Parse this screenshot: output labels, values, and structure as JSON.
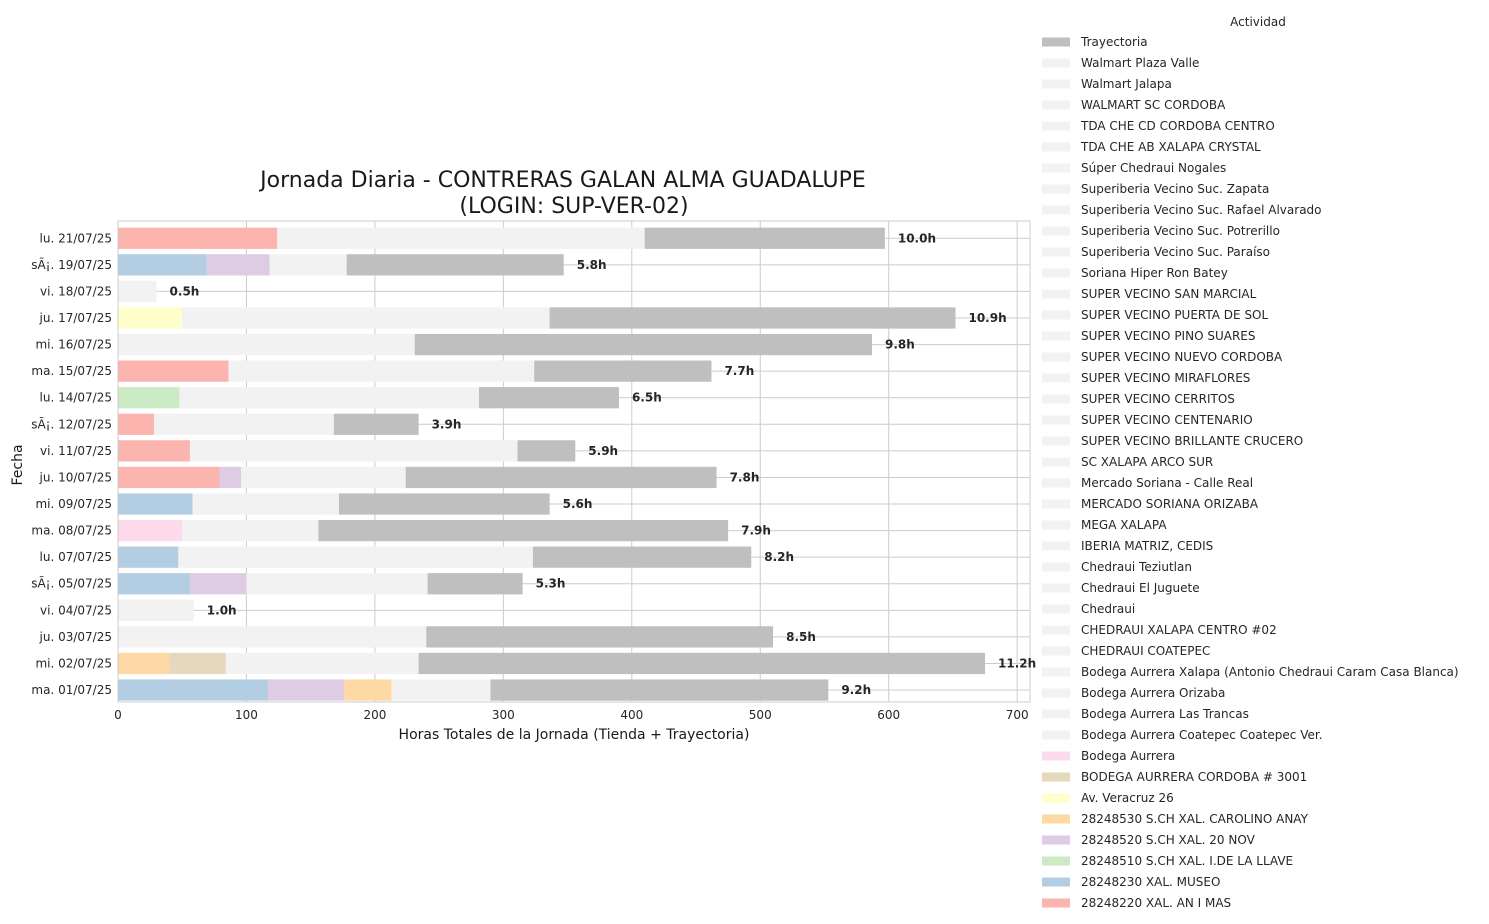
{
  "chart_data": {
    "type": "bar",
    "orientation": "horizontal",
    "stacked": true,
    "title_line1": "Jornada Diaria - CONTRERAS GALAN ALMA GUADALUPE",
    "title_line2": "(LOGIN: SUP-VER-02)",
    "xlabel": "Horas Totales de la Jornada (Tienda + Trayectoria)",
    "ylabel": "Fecha",
    "xlim": [
      0,
      710
    ],
    "xticks": [
      0,
      100,
      200,
      300,
      400,
      500,
      600,
      700
    ],
    "grid": true,
    "legend_title": "Actividad",
    "legend_position": "right",
    "legend": [
      {
        "name": "Trayectoria",
        "color": "#bfbfbf"
      },
      {
        "name": "Walmart Plaza Valle",
        "color": "#f2f2f2"
      },
      {
        "name": "Walmart Jalapa",
        "color": "#f2f2f2"
      },
      {
        "name": "WALMART SC CORDOBA",
        "color": "#f2f2f2"
      },
      {
        "name": "TDA CHE CD CORDOBA CENTRO",
        "color": "#f2f2f2"
      },
      {
        "name": "TDA CHE AB XALAPA CRYSTAL",
        "color": "#f2f2f2"
      },
      {
        "name": "Súper Chedraui Nogales",
        "color": "#f2f2f2"
      },
      {
        "name": "Superiberia Vecino Suc. Zapata",
        "color": "#f2f2f2"
      },
      {
        "name": "Superiberia Vecino Suc. Rafael Alvarado",
        "color": "#f2f2f2"
      },
      {
        "name": "Superiberia Vecino Suc. Potrerillo",
        "color": "#f2f2f2"
      },
      {
        "name": "Superiberia Vecino Suc. Paraíso",
        "color": "#f2f2f2"
      },
      {
        "name": "Soriana Hiper Ron Batey",
        "color": "#f2f2f2"
      },
      {
        "name": "SUPER VECINO SAN MARCIAL",
        "color": "#f2f2f2"
      },
      {
        "name": "SUPER VECINO PUERTA DE SOL",
        "color": "#f2f2f2"
      },
      {
        "name": "SUPER VECINO PINO SUARES",
        "color": "#f2f2f2"
      },
      {
        "name": "SUPER VECINO NUEVO CORDOBA",
        "color": "#f2f2f2"
      },
      {
        "name": "SUPER VECINO MIRAFLORES",
        "color": "#f2f2f2"
      },
      {
        "name": "SUPER VECINO CERRITOS",
        "color": "#f2f2f2"
      },
      {
        "name": "SUPER VECINO CENTENARIO",
        "color": "#f2f2f2"
      },
      {
        "name": "SUPER VECINO BRILLANTE CRUCERO",
        "color": "#f2f2f2"
      },
      {
        "name": "SC XALAPA ARCO SUR",
        "color": "#f2f2f2"
      },
      {
        "name": "Mercado Soriana - Calle Real",
        "color": "#f2f2f2"
      },
      {
        "name": "MERCADO SORIANA ORIZABA",
        "color": "#f2f2f2"
      },
      {
        "name": "MEGA XALAPA",
        "color": "#f2f2f2"
      },
      {
        "name": "IBERIA MATRIZ, CEDIS",
        "color": "#f2f2f2"
      },
      {
        "name": "Chedraui Teziutlan",
        "color": "#f2f2f2"
      },
      {
        "name": "Chedraui El Juguete",
        "color": "#f2f2f2"
      },
      {
        "name": "Chedraui",
        "color": "#f2f2f2"
      },
      {
        "name": "CHEDRAUI XALAPA CENTRO #02",
        "color": "#f2f2f2"
      },
      {
        "name": "CHEDRAUI COATEPEC",
        "color": "#f2f2f2"
      },
      {
        "name": "Bodega Aurrera Xalapa (Antonio Chedraui Caram Casa Blanca)",
        "color": "#f2f2f2"
      },
      {
        "name": "Bodega Aurrera Orizaba",
        "color": "#f2f2f2"
      },
      {
        "name": "Bodega Aurrera Las Trancas",
        "color": "#f2f2f2"
      },
      {
        "name": "Bodega Aurrera Coatepec Coatepec Ver.",
        "color": "#f2f2f2"
      },
      {
        "name": "Bodega Aurrera",
        "color": "#fddaec"
      },
      {
        "name": "BODEGA AURRERA CORDOBA # 3001",
        "color": "#e5d8bd"
      },
      {
        "name": "Av. Veracruz 26",
        "color": "#ffffcc"
      },
      {
        "name": "28248530 S.CH XAL. CAROLINO ANAY",
        "color": "#fed9a6"
      },
      {
        "name": "28248520 S.CH XAL. 20 NOV",
        "color": "#decbe4"
      },
      {
        "name": "28248510 S.CH XAL. I.DE LA LLAVE",
        "color": "#ccebc5"
      },
      {
        "name": "28248230 XAL. MUSEO",
        "color": "#b3cde3"
      },
      {
        "name": "28248220 XAL. AN I MAS",
        "color": "#fbb4ae"
      }
    ],
    "rows": [
      {
        "date": "lu. 21/07/25",
        "label": "10.0h",
        "segments": [
          {
            "color": "#fbb4ae",
            "value": 124
          },
          {
            "color": "#f2f2f2",
            "value": 286
          },
          {
            "color": "#bfbfbf",
            "value": 187
          }
        ]
      },
      {
        "date": "sÃ¡. 19/07/25",
        "label": "5.8h",
        "segments": [
          {
            "color": "#b3cde3",
            "value": 69
          },
          {
            "color": "#decbe4",
            "value": 49
          },
          {
            "color": "#f2f2f2",
            "value": 60
          },
          {
            "color": "#bfbfbf",
            "value": 169
          }
        ]
      },
      {
        "date": "vi. 18/07/25",
        "label": "0.5h",
        "segments": [
          {
            "color": "#f2f2f2",
            "value": 30
          }
        ]
      },
      {
        "date": "ju. 17/07/25",
        "label": "10.9h",
        "segments": [
          {
            "color": "#ffffcc",
            "value": 50
          },
          {
            "color": "#f2f2f2",
            "value": 286
          },
          {
            "color": "#bfbfbf",
            "value": 316
          }
        ]
      },
      {
        "date": "mi. 16/07/25",
        "label": "9.8h",
        "segments": [
          {
            "color": "#f2f2f2",
            "value": 231
          },
          {
            "color": "#bfbfbf",
            "value": 356
          }
        ]
      },
      {
        "date": "ma. 15/07/25",
        "label": "7.7h",
        "segments": [
          {
            "color": "#fbb4ae",
            "value": 86
          },
          {
            "color": "#f2f2f2",
            "value": 238
          },
          {
            "color": "#bfbfbf",
            "value": 138
          }
        ]
      },
      {
        "date": "lu. 14/07/25",
        "label": "6.5h",
        "segments": [
          {
            "color": "#ccebc5",
            "value": 48
          },
          {
            "color": "#f2f2f2",
            "value": 233
          },
          {
            "color": "#bfbfbf",
            "value": 109
          }
        ]
      },
      {
        "date": "sÃ¡. 12/07/25",
        "label": "3.9h",
        "segments": [
          {
            "color": "#fbb4ae",
            "value": 28
          },
          {
            "color": "#f2f2f2",
            "value": 140
          },
          {
            "color": "#bfbfbf",
            "value": 66
          }
        ]
      },
      {
        "date": "vi. 11/07/25",
        "label": "5.9h",
        "segments": [
          {
            "color": "#fbb4ae",
            "value": 56
          },
          {
            "color": "#f2f2f2",
            "value": 255
          },
          {
            "color": "#bfbfbf",
            "value": 45
          }
        ]
      },
      {
        "date": "ju. 10/07/25",
        "label": "7.8h",
        "segments": [
          {
            "color": "#fbb4ae",
            "value": 79
          },
          {
            "color": "#decbe4",
            "value": 17
          },
          {
            "color": "#f2f2f2",
            "value": 128
          },
          {
            "color": "#bfbfbf",
            "value": 242
          }
        ]
      },
      {
        "date": "mi. 09/07/25",
        "label": "5.6h",
        "segments": [
          {
            "color": "#b3cde3",
            "value": 58
          },
          {
            "color": "#f2f2f2",
            "value": 114
          },
          {
            "color": "#bfbfbf",
            "value": 164
          }
        ]
      },
      {
        "date": "ma. 08/07/25",
        "label": "7.9h",
        "segments": [
          {
            "color": "#fddaec",
            "value": 50
          },
          {
            "color": "#f2f2f2",
            "value": 106
          },
          {
            "color": "#bfbfbf",
            "value": 319
          }
        ]
      },
      {
        "date": "lu. 07/07/25",
        "label": "8.2h",
        "segments": [
          {
            "color": "#b3cde3",
            "value": 47
          },
          {
            "color": "#f2f2f2",
            "value": 276
          },
          {
            "color": "#bfbfbf",
            "value": 170
          }
        ]
      },
      {
        "date": "sÃ¡. 05/07/25",
        "label": "5.3h",
        "segments": [
          {
            "color": "#b3cde3",
            "value": 56
          },
          {
            "color": "#decbe4",
            "value": 44
          },
          {
            "color": "#f2f2f2",
            "value": 141
          },
          {
            "color": "#bfbfbf",
            "value": 74
          }
        ]
      },
      {
        "date": "vi. 04/07/25",
        "label": "1.0h",
        "segments": [
          {
            "color": "#f2f2f2",
            "value": 59
          }
        ]
      },
      {
        "date": "ju. 03/07/25",
        "label": "8.5h",
        "segments": [
          {
            "color": "#f2f2f2",
            "value": 240
          },
          {
            "color": "#bfbfbf",
            "value": 270
          }
        ]
      },
      {
        "date": "mi. 02/07/25",
        "label": "11.2h",
        "segments": [
          {
            "color": "#fed9a6",
            "value": 40
          },
          {
            "color": "#e5d8bd",
            "value": 44
          },
          {
            "color": "#f2f2f2",
            "value": 150
          },
          {
            "color": "#bfbfbf",
            "value": 441
          }
        ]
      },
      {
        "date": "ma. 01/07/25",
        "label": "9.2h",
        "segments": [
          {
            "color": "#b3cde3",
            "value": 117
          },
          {
            "color": "#decbe4",
            "value": 59
          },
          {
            "color": "#fed9a6",
            "value": 37
          },
          {
            "color": "#f2f2f2",
            "value": 77
          },
          {
            "color": "#bfbfbf",
            "value": 263
          }
        ]
      }
    ]
  }
}
